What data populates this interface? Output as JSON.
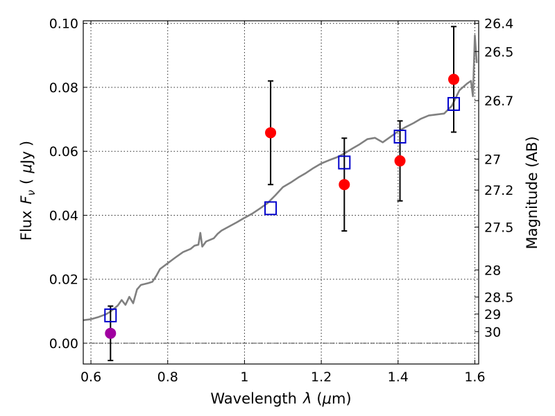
{
  "chart_data": {
    "type": "scatter",
    "xlabel": "Wavelength",
    "xlabel_symbol": "λ",
    "xlabel_unit_open": "(",
    "xlabel_unit_mu": "μ",
    "xlabel_unit_rest": "m)",
    "ylabel": "Flux",
    "ylabel_symbol": "F",
    "ylabel_subscript": "ν",
    "ylabel_unit_open": "(",
    "ylabel_unit_mu": "μ",
    "ylabel_unit_rest": "Jy )",
    "y2label": "Magnitude (AB)",
    "xlim": [
      0.58,
      1.61
    ],
    "ylim": [
      -0.0065,
      0.1008
    ],
    "xticks": [
      0.6,
      0.8,
      1.0,
      1.2,
      1.4,
      1.6
    ],
    "xtick_labels": [
      "0.6",
      "0.8",
      "1",
      "1.2",
      "1.4",
      "1.6"
    ],
    "yticks": [
      0.0,
      0.02,
      0.04,
      0.06,
      0.08,
      0.1
    ],
    "ytick_labels": [
      "0.00",
      "0.02",
      "0.04",
      "0.06",
      "0.08",
      "0.10"
    ],
    "magnitude_ticks": [
      {
        "label": "26.4",
        "value": 26.4
      },
      {
        "label": "26.5",
        "value": 26.5
      },
      {
        "label": "26.7",
        "value": 26.7
      },
      {
        "label": "27",
        "value": 27.0
      },
      {
        "label": "27.2",
        "value": 27.2
      },
      {
        "label": "27.5",
        "value": 27.5
      },
      {
        "label": "28",
        "value": 28.0
      },
      {
        "label": "28.5",
        "value": 28.5
      },
      {
        "label": "29",
        "value": 29.0
      },
      {
        "label": "30",
        "value": 30.0
      }
    ],
    "grid": true,
    "zero_line": true,
    "series": [
      {
        "kind": "line",
        "color": "#808080",
        "x": [
          0.58,
          0.6,
          0.62,
          0.64,
          0.65,
          0.66,
          0.67,
          0.68,
          0.69,
          0.7,
          0.71,
          0.72,
          0.73,
          0.74,
          0.75,
          0.76,
          0.77,
          0.78,
          0.8,
          0.82,
          0.84,
          0.86,
          0.87,
          0.88,
          0.885,
          0.89,
          0.9,
          0.92,
          0.93,
          0.94,
          0.96,
          0.98,
          1.0,
          1.02,
          1.04,
          1.06,
          1.08,
          1.1,
          1.12,
          1.14,
          1.16,
          1.18,
          1.2,
          1.22,
          1.24,
          1.26,
          1.28,
          1.3,
          1.32,
          1.34,
          1.36,
          1.38,
          1.4,
          1.42,
          1.44,
          1.46,
          1.48,
          1.5,
          1.52,
          1.54,
          1.56,
          1.58,
          1.59,
          1.595,
          1.6,
          1.605
        ],
        "y": [
          0.0072,
          0.0075,
          0.0082,
          0.0091,
          0.0098,
          0.0108,
          0.0118,
          0.0135,
          0.012,
          0.0145,
          0.0125,
          0.0168,
          0.0182,
          0.0185,
          0.0188,
          0.0192,
          0.021,
          0.0232,
          0.025,
          0.0268,
          0.0285,
          0.0295,
          0.0305,
          0.0308,
          0.0345,
          0.0302,
          0.0318,
          0.0328,
          0.0342,
          0.0352,
          0.0365,
          0.0378,
          0.0392,
          0.0405,
          0.0421,
          0.0438,
          0.0462,
          0.0488,
          0.0502,
          0.0518,
          0.0532,
          0.0548,
          0.0562,
          0.0572,
          0.0581,
          0.0593,
          0.0608,
          0.0622,
          0.0638,
          0.0642,
          0.0628,
          0.0645,
          0.0662,
          0.0676,
          0.0688,
          0.0702,
          0.0712,
          0.0715,
          0.0718,
          0.0742,
          0.0791,
          0.0812,
          0.082,
          0.0772,
          0.0962,
          0.0876
        ]
      },
      {
        "kind": "points",
        "marker": "circle",
        "color": "#ff0000",
        "x": [
          1.068,
          1.26,
          1.405,
          1.545
        ],
        "y": [
          0.0658,
          0.0496,
          0.057,
          0.0825
        ],
        "yerr": [
          0.0162,
          0.0145,
          0.0125,
          0.0165
        ]
      },
      {
        "kind": "points",
        "marker": "circle",
        "color": "#a000a0",
        "x": [
          0.651
        ],
        "y": [
          0.0031
        ],
        "yerr": [
          0.0085
        ]
      },
      {
        "kind": "points",
        "marker": "open-square",
        "color": "#0000cc",
        "x": [
          0.651,
          1.068,
          1.26,
          1.405,
          1.545
        ],
        "y": [
          0.0087,
          0.0422,
          0.0565,
          0.0646,
          0.0748
        ]
      }
    ]
  }
}
